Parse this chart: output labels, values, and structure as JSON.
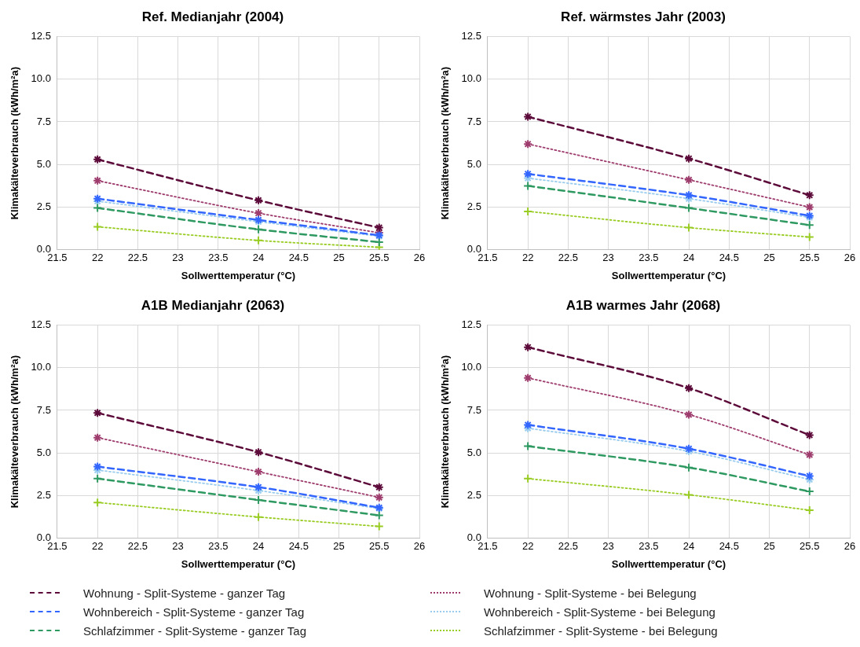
{
  "chart_data": [
    {
      "type": "line",
      "title": "Ref. Medianjahr (2004)",
      "xlabel": "Sollwerttemperatur (°C)",
      "ylabel": "Klimakälteverbrauch (kWh/m²a)",
      "x": [
        22,
        24,
        25.5
      ],
      "xlim": [
        21.5,
        26
      ],
      "xticks": [
        21.5,
        22,
        22.5,
        23,
        23.5,
        24,
        24.5,
        25,
        25.5,
        26
      ],
      "ylim": [
        0,
        12.5
      ],
      "yticks": [
        {
          "value": 0,
          "label": "0.0"
        },
        2.5,
        {
          "value": 5,
          "label": "5.0"
        },
        7.5,
        {
          "value": 10,
          "label": "10.0"
        },
        12.5
      ],
      "grid": true,
      "legend": "bottom",
      "series": [
        {
          "name": "Wohnung - Split-Systeme - ganzer Tag",
          "color": "#5c0a3a",
          "marker": "cross",
          "line_style": "dashed",
          "values": [
            5.3,
            2.9,
            1.3
          ]
        },
        {
          "name": "Wohnbereich - Split-Systeme - ganzer Tag",
          "color": "#3366ff",
          "marker": "cross",
          "line_style": "dashed",
          "values": [
            3.0,
            1.75,
            0.85
          ]
        },
        {
          "name": "Schlafzimmer - Split-Systeme - ganzer Tag",
          "color": "#2e9960",
          "marker": "plus",
          "line_style": "dashed",
          "values": [
            2.45,
            1.2,
            0.45
          ]
        },
        {
          "name": "Wohnung - Split-Systeme - bei Belegung",
          "color": "#9e3c6e",
          "marker": "cross",
          "line_style": "dotted",
          "values": [
            4.05,
            2.15,
            1.0
          ]
        },
        {
          "name": "Wohnbereich - Split-Systeme - bei Belegung",
          "color": "#99ccee",
          "marker": "cross",
          "line_style": "dotted",
          "values": [
            2.85,
            1.65,
            0.8
          ]
        },
        {
          "name": "Schlafzimmer - Split-Systeme - bei Belegung",
          "color": "#99cc22",
          "marker": "plus",
          "line_style": "dotted",
          "values": [
            1.35,
            0.55,
            0.15
          ]
        }
      ]
    },
    {
      "type": "line",
      "title": "Ref. wärmstes Jahr (2003)",
      "xlabel": "Sollwerttemperatur (°C)",
      "ylabel": "Klimakälteverbrauch (kWh/m²a)",
      "x": [
        22,
        24,
        25.5
      ],
      "xlim": [
        21.5,
        26
      ],
      "xticks": [
        21.5,
        22,
        22.5,
        23,
        23.5,
        24,
        24.5,
        25,
        25.5,
        26
      ],
      "ylim": [
        0,
        12.5
      ],
      "yticks": [
        {
          "value": 0,
          "label": "0.0"
        },
        2.5,
        {
          "value": 5,
          "label": "5.0"
        },
        7.5,
        {
          "value": 10,
          "label": "10.0"
        },
        12.5
      ],
      "grid": true,
      "series": [
        {
          "color": "#5c0a3a",
          "marker": "cross",
          "line_style": "dashed",
          "values": [
            7.8,
            5.35,
            3.2
          ]
        },
        {
          "color": "#3366ff",
          "marker": "cross",
          "line_style": "dashed",
          "values": [
            4.45,
            3.2,
            2.0
          ]
        },
        {
          "color": "#2e9960",
          "marker": "plus",
          "line_style": "dashed",
          "values": [
            3.75,
            2.45,
            1.45
          ]
        },
        {
          "color": "#9e3c6e",
          "marker": "cross",
          "line_style": "dotted",
          "values": [
            6.2,
            4.1,
            2.5
          ]
        },
        {
          "color": "#99ccee",
          "marker": "cross",
          "line_style": "dotted",
          "values": [
            4.2,
            3.0,
            1.9
          ]
        },
        {
          "color": "#99cc22",
          "marker": "plus",
          "line_style": "dotted",
          "values": [
            2.25,
            1.3,
            0.75
          ]
        }
      ]
    },
    {
      "type": "line",
      "title": "A1B Medianjahr (2063)",
      "xlabel": "Sollwerttemperatur (°C)",
      "ylabel": "Klimakälteverbrauch (kWh/m²a)",
      "x": [
        22,
        24,
        25.5
      ],
      "xlim": [
        21.5,
        26
      ],
      "xticks": [
        21.5,
        22,
        22.5,
        23,
        23.5,
        24,
        24.5,
        25,
        25.5,
        26
      ],
      "ylim": [
        0,
        12.5
      ],
      "yticks": [
        {
          "value": 0,
          "label": "0.0"
        },
        2.5,
        {
          "value": 5,
          "label": "5.0"
        },
        7.5,
        {
          "value": 10,
          "label": "10.0"
        },
        12.5
      ],
      "grid": true,
      "series": [
        {
          "color": "#5c0a3a",
          "marker": "cross",
          "line_style": "dashed",
          "values": [
            7.35,
            5.05,
            3.0
          ]
        },
        {
          "color": "#3366ff",
          "marker": "cross",
          "line_style": "dashed",
          "values": [
            4.2,
            3.0,
            1.8
          ]
        },
        {
          "color": "#2e9960",
          "marker": "plus",
          "line_style": "dashed",
          "values": [
            3.5,
            2.25,
            1.35
          ]
        },
        {
          "color": "#9e3c6e",
          "marker": "cross",
          "line_style": "dotted",
          "values": [
            5.9,
            3.9,
            2.4
          ]
        },
        {
          "color": "#99ccee",
          "marker": "cross",
          "line_style": "dotted",
          "values": [
            4.0,
            2.8,
            1.75
          ]
        },
        {
          "color": "#99cc22",
          "marker": "plus",
          "line_style": "dotted",
          "values": [
            2.1,
            1.25,
            0.7
          ]
        }
      ]
    },
    {
      "type": "line",
      "title": "A1B warmes Jahr (2068)",
      "xlabel": "Sollwerttemperatur (°C)",
      "ylabel": "Klimakälteverbrauch (kWh/m²a)",
      "x": [
        22,
        24,
        25.5
      ],
      "xlim": [
        21.5,
        26
      ],
      "xticks": [
        21.5,
        22,
        22.5,
        23,
        23.5,
        24,
        24.5,
        25,
        25.5,
        26
      ],
      "ylim": [
        0,
        12.5
      ],
      "yticks": [
        {
          "value": 0,
          "label": "0.0"
        },
        2.5,
        {
          "value": 5,
          "label": "5.0"
        },
        7.5,
        {
          "value": 10,
          "label": "10.0"
        },
        12.5
      ],
      "grid": true,
      "series": [
        {
          "color": "#5c0a3a",
          "marker": "cross",
          "line_style": "dashed",
          "values": [
            11.2,
            8.8,
            6.05
          ]
        },
        {
          "color": "#3366ff",
          "marker": "cross",
          "line_style": "dashed",
          "values": [
            6.65,
            5.25,
            3.65
          ]
        },
        {
          "color": "#2e9960",
          "marker": "plus",
          "line_style": "dashed",
          "values": [
            5.4,
            4.15,
            2.75
          ]
        },
        {
          "color": "#9e3c6e",
          "marker": "cross",
          "line_style": "dotted",
          "values": [
            9.4,
            7.25,
            4.9
          ]
        },
        {
          "color": "#99ccee",
          "marker": "cross",
          "line_style": "dotted",
          "values": [
            6.45,
            5.1,
            3.45
          ]
        },
        {
          "color": "#99cc22",
          "marker": "plus",
          "line_style": "dotted",
          "values": [
            3.5,
            2.55,
            1.65
          ]
        }
      ]
    }
  ]
}
